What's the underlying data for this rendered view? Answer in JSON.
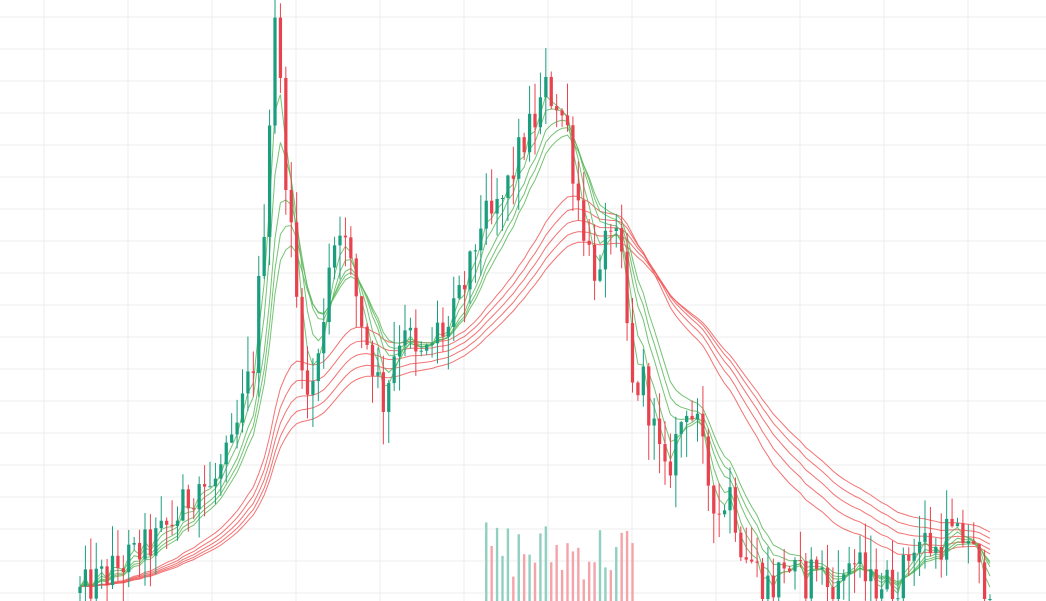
{
  "chart_data": {
    "type": "candlestick",
    "title": "",
    "xlabel": "",
    "ylabel": "",
    "grid": true,
    "ylim": [
      0,
      600
    ],
    "colors": {
      "up": "#1a9e7e",
      "down": "#e8424e",
      "ma_short": "#5cb85c",
      "ma_long": "#f05a5a",
      "vol_up": "#8fd0c0",
      "vol_down": "#f4a3a8",
      "grid": "#ececec"
    },
    "anchors": [
      [
        0,
        8
      ],
      [
        14,
        60
      ],
      [
        18,
        85
      ],
      [
        22,
        120
      ],
      [
        24,
        110
      ],
      [
        28,
        150
      ],
      [
        32,
        240
      ],
      [
        34,
        380
      ],
      [
        36,
        590
      ],
      [
        38,
        430
      ],
      [
        40,
        300
      ],
      [
        42,
        200
      ],
      [
        44,
        240
      ],
      [
        46,
        340
      ],
      [
        48,
        380
      ],
      [
        50,
        330
      ],
      [
        52,
        280
      ],
      [
        54,
        240
      ],
      [
        56,
        200
      ],
      [
        58,
        250
      ],
      [
        60,
        280
      ],
      [
        62,
        240
      ],
      [
        64,
        245
      ],
      [
        66,
        270
      ],
      [
        68,
        270
      ],
      [
        70,
        300
      ],
      [
        72,
        330
      ],
      [
        74,
        380
      ],
      [
        76,
        380
      ],
      [
        78,
        400
      ],
      [
        80,
        430
      ],
      [
        82,
        460
      ],
      [
        84,
        480
      ],
      [
        86,
        510
      ],
      [
        88,
        500
      ],
      [
        90,
        470
      ],
      [
        92,
        400
      ],
      [
        94,
        350
      ],
      [
        96,
        320
      ],
      [
        98,
        380
      ],
      [
        100,
        330
      ],
      [
        102,
        210
      ],
      [
        104,
        220
      ],
      [
        106,
        170
      ],
      [
        108,
        120
      ],
      [
        110,
        160
      ],
      [
        112,
        200
      ],
      [
        114,
        170
      ],
      [
        116,
        120
      ],
      [
        118,
        90
      ],
      [
        120,
        110
      ],
      [
        122,
        60
      ],
      [
        124,
        40
      ],
      [
        126,
        20
      ],
      [
        128,
        15
      ],
      [
        130,
        40
      ],
      [
        132,
        25
      ],
      [
        134,
        20
      ],
      [
        136,
        40
      ],
      [
        138,
        15
      ],
      [
        140,
        10
      ],
      [
        142,
        45
      ],
      [
        144,
        30
      ],
      [
        146,
        15
      ],
      [
        148,
        20
      ],
      [
        150,
        15
      ],
      [
        152,
        30
      ],
      [
        154,
        60
      ],
      [
        156,
        60
      ],
      [
        158,
        50
      ],
      [
        160,
        70
      ],
      [
        162,
        60
      ],
      [
        164,
        65
      ],
      [
        166,
        25
      ],
      [
        168,
        8
      ]
    ],
    "ma_periods": {
      "short": [
        3,
        5,
        8,
        10,
        12
      ],
      "long": [
        30,
        35,
        40,
        45,
        50
      ]
    },
    "volume_range": [
      75,
      102
    ]
  }
}
